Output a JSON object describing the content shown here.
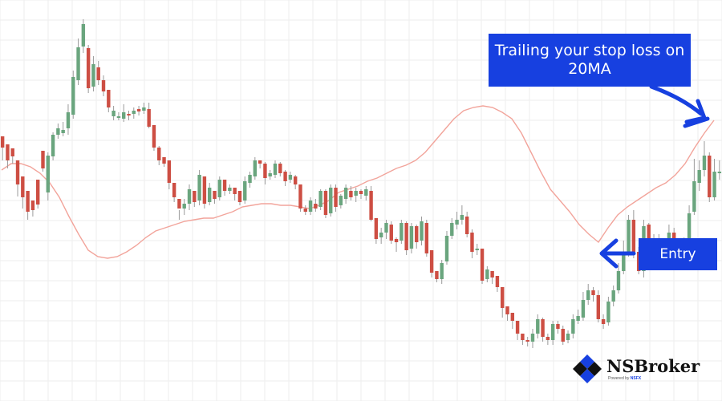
{
  "top_text": "..... ...... ..... ..... ......",
  "callouts": {
    "trailing": "Trailing your stop loss on 20MA",
    "entry": "Entry"
  },
  "brand": {
    "name": "NSBroker",
    "powered_by": "Powered by",
    "powered_brand": "NSFX"
  },
  "colors": {
    "up": "#6aa57e",
    "down": "#cd4e43",
    "ma": "#f2a49b",
    "callout": "#1740e0",
    "grid": "#eeeeee"
  },
  "chart_data": {
    "type": "candlestick",
    "grid": true,
    "ylim": [
      0,
      500
    ],
    "ylim_note_inverted": true,
    "candles": [
      [
        330,
        316,
        322,
        300
      ],
      [
        320,
        300,
        308,
        290
      ],
      [
        315,
        305,
        310,
        296
      ],
      [
        300,
        270,
        275,
        255
      ],
      [
        280,
        254,
        260,
        240
      ],
      [
        262,
        236,
        240,
        226
      ],
      [
        250,
        238,
        246,
        230
      ],
      [
        276,
        245,
        270,
        240
      ],
      [
        312,
        290,
        300,
        286
      ],
      [
        260,
        306,
        310,
        250
      ],
      [
        305,
        332,
        335,
        300
      ],
      [
        332,
        340,
        346,
        327
      ],
      [
        334,
        338,
        348,
        330
      ],
      [
        340,
        360,
        370,
        332
      ],
      [
        357,
        404,
        412,
        352
      ],
      [
        400,
        441,
        452,
        394
      ],
      [
        442,
        470,
        476,
        434
      ],
      [
        440,
        390,
        444,
        384
      ],
      [
        392,
        420,
        430,
        386
      ],
      [
        416,
        400,
        424,
        394
      ],
      [
        400,
        386,
        406,
        380
      ],
      [
        388,
        366,
        372,
        360
      ],
      [
        355,
        362,
        368,
        350
      ],
      [
        355,
        355,
        360,
        350
      ],
      [
        352,
        360,
        370,
        348
      ],
      [
        358,
        356,
        362,
        350
      ],
      [
        358,
        362,
        366,
        352
      ],
      [
        364,
        361,
        368,
        356
      ],
      [
        362,
        366,
        372,
        358
      ],
      [
        364,
        342,
        372,
        340
      ],
      [
        344,
        316,
        320,
        312
      ],
      [
        316,
        300,
        318,
        294
      ],
      [
        304,
        296,
        300,
        292
      ],
      [
        300,
        272,
        276,
        264
      ],
      [
        272,
        254,
        256,
        248
      ],
      [
        252,
        240,
        238,
        226
      ],
      [
        240,
        246,
        252,
        232
      ],
      [
        246,
        264,
        270,
        238
      ],
      [
        262,
        248,
        258,
        242
      ],
      [
        250,
        282,
        288,
        244
      ],
      [
        280,
        246,
        256,
        240
      ],
      [
        248,
        266,
        272,
        244
      ],
      [
        262,
        252,
        258,
        246
      ],
      [
        254,
        276,
        280,
        250
      ],
      [
        276,
        262,
        272,
        256
      ],
      [
        262,
        266,
        270,
        258
      ],
      [
        266,
        258,
        264,
        250
      ],
      [
        262,
        248,
        258,
        244
      ],
      [
        250,
        274,
        280,
        246
      ],
      [
        272,
        282,
        286,
        266
      ],
      [
        280,
        300,
        304,
        276
      ],
      [
        300,
        296,
        300,
        290
      ],
      [
        296,
        278,
        298,
        270
      ],
      [
        280,
        284,
        288,
        276
      ],
      [
        282,
        296,
        300,
        278
      ],
      [
        296,
        284,
        298,
        280
      ],
      [
        286,
        274,
        288,
        268
      ],
      [
        276,
        282,
        286,
        272
      ],
      [
        280,
        270,
        282,
        264
      ],
      [
        270,
        240,
        244,
        236
      ],
      [
        240,
        236,
        244,
        232
      ],
      [
        236,
        250,
        254,
        232
      ],
      [
        246,
        240,
        252,
        236
      ],
      [
        242,
        262,
        264,
        238
      ],
      [
        262,
        232,
        264,
        228
      ],
      [
        234,
        266,
        270,
        230
      ],
      [
        266,
        242,
        270,
        236
      ],
      [
        244,
        256,
        258,
        240
      ],
      [
        252,
        266,
        270,
        246
      ],
      [
        262,
        254,
        268,
        250
      ],
      [
        256,
        262,
        266,
        248
      ],
      [
        262,
        258,
        264,
        252
      ],
      [
        256,
        264,
        268,
        250
      ],
      [
        262,
        226,
        268,
        224
      ],
      [
        228,
        202,
        210,
        196
      ],
      [
        204,
        210,
        216,
        196
      ],
      [
        210,
        222,
        226,
        202
      ],
      [
        220,
        200,
        224,
        196
      ],
      [
        202,
        198,
        204,
        186
      ],
      [
        200,
        222,
        226,
        196
      ],
      [
        222,
        188,
        224,
        182
      ],
      [
        190,
        218,
        222,
        184
      ],
      [
        218,
        198,
        220,
        190
      ],
      [
        200,
        224,
        230,
        194
      ],
      [
        222,
        184,
        226,
        180
      ],
      [
        188,
        160,
        162,
        154
      ],
      [
        162,
        152,
        156,
        148
      ],
      [
        152,
        172,
        176,
        146
      ],
      [
        174,
        206,
        212,
        170
      ],
      [
        206,
        222,
        228,
        202
      ],
      [
        220,
        226,
        236,
        214
      ],
      [
        226,
        232,
        244,
        220
      ],
      [
        230,
        208,
        236,
        204
      ],
      [
        210,
        186,
        214,
        178
      ],
      [
        188,
        190,
        196,
        182
      ],
      [
        190,
        150,
        152,
        146
      ],
      [
        152,
        164,
        168,
        148
      ],
      [
        162,
        154,
        156,
        146
      ],
      [
        156,
        142,
        146,
        136
      ],
      [
        142,
        116,
        120,
        104
      ],
      [
        118,
        108,
        112,
        100
      ],
      [
        110,
        100,
        106,
        90
      ],
      [
        100,
        84,
        96,
        76
      ],
      [
        84,
        76,
        84,
        70
      ],
      [
        76,
        74,
        80,
        68
      ],
      [
        74,
        84,
        90,
        66
      ],
      [
        84,
        102,
        108,
        78
      ],
      [
        102,
        80,
        104,
        74
      ],
      [
        80,
        76,
        84,
        70
      ],
      [
        76,
        96,
        100,
        70
      ],
      [
        96,
        90,
        100,
        84
      ],
      [
        90,
        74,
        94,
        70
      ],
      [
        76,
        84,
        88,
        72
      ],
      [
        84,
        102,
        108,
        78
      ],
      [
        100,
        106,
        114,
        96
      ],
      [
        104,
        126,
        136,
        100
      ],
      [
        126,
        138,
        146,
        120
      ],
      [
        138,
        132,
        142,
        124
      ],
      [
        132,
        102,
        138,
        98
      ],
      [
        102,
        96,
        108,
        90
      ],
      [
        98,
        124,
        130,
        94
      ],
      [
        124,
        138,
        144,
        118
      ],
      [
        138,
        162,
        172,
        134
      ],
      [
        162,
        186,
        200,
        158
      ],
      [
        186,
        226,
        232,
        180
      ],
      [
        226,
        186,
        238,
        178
      ],
      [
        186,
        162,
        192,
        158
      ],
      [
        162,
        218,
        226,
        154
      ],
      [
        220,
        192,
        222,
        186
      ],
      [
        192,
        200,
        208,
        188
      ],
      [
        200,
        188,
        208,
        184
      ],
      [
        190,
        176,
        196,
        172
      ],
      [
        178,
        210,
        220,
        172
      ],
      [
        210,
        194,
        216,
        188
      ],
      [
        196,
        176,
        200,
        170
      ],
      [
        176,
        196,
        204,
        172
      ],
      [
        196,
        234,
        244,
        190
      ],
      [
        236,
        274,
        302,
        232
      ],
      [
        272,
        288,
        300,
        262
      ],
      [
        288,
        306,
        324,
        280
      ],
      [
        306,
        254,
        310,
        248
      ],
      [
        254,
        286,
        302,
        250
      ],
      [
        286,
        286,
        300,
        276
      ]
    ],
    "ma20": [
      [
        0,
        288
      ],
      [
        12,
        296
      ],
      [
        24,
        296
      ],
      [
        36,
        292
      ],
      [
        48,
        284
      ],
      [
        60,
        272
      ],
      [
        72,
        254
      ],
      [
        84,
        230
      ],
      [
        96,
        208
      ],
      [
        108,
        188
      ],
      [
        120,
        180
      ],
      [
        132,
        178
      ],
      [
        144,
        180
      ],
      [
        156,
        186
      ],
      [
        168,
        194
      ],
      [
        180,
        204
      ],
      [
        192,
        212
      ],
      [
        204,
        216
      ],
      [
        216,
        220
      ],
      [
        228,
        224
      ],
      [
        240,
        226
      ],
      [
        252,
        228
      ],
      [
        264,
        228
      ],
      [
        276,
        232
      ],
      [
        288,
        236
      ],
      [
        300,
        242
      ],
      [
        312,
        244
      ],
      [
        324,
        246
      ],
      [
        336,
        246
      ],
      [
        348,
        244
      ],
      [
        360,
        244
      ],
      [
        372,
        242
      ],
      [
        384,
        240
      ],
      [
        396,
        244
      ],
      [
        408,
        250
      ],
      [
        420,
        260
      ],
      [
        432,
        264
      ],
      [
        444,
        268
      ],
      [
        456,
        274
      ],
      [
        468,
        278
      ],
      [
        480,
        284
      ],
      [
        492,
        290
      ],
      [
        504,
        294
      ],
      [
        516,
        300
      ],
      [
        528,
        310
      ],
      [
        540,
        324
      ],
      [
        552,
        338
      ],
      [
        564,
        352
      ],
      [
        576,
        362
      ],
      [
        588,
        366
      ],
      [
        600,
        368
      ],
      [
        612,
        366
      ],
      [
        624,
        360
      ],
      [
        636,
        352
      ],
      [
        648,
        334
      ],
      [
        660,
        310
      ],
      [
        672,
        286
      ],
      [
        684,
        264
      ],
      [
        696,
        250
      ],
      [
        708,
        236
      ],
      [
        720,
        220
      ],
      [
        732,
        208
      ],
      [
        744,
        198
      ],
      [
        756,
        216
      ],
      [
        768,
        232
      ],
      [
        780,
        242
      ],
      [
        792,
        250
      ],
      [
        804,
        258
      ],
      [
        816,
        266
      ],
      [
        828,
        272
      ],
      [
        840,
        282
      ],
      [
        852,
        296
      ],
      [
        864,
        316
      ],
      [
        876,
        334
      ],
      [
        888,
        350
      ]
    ]
  }
}
